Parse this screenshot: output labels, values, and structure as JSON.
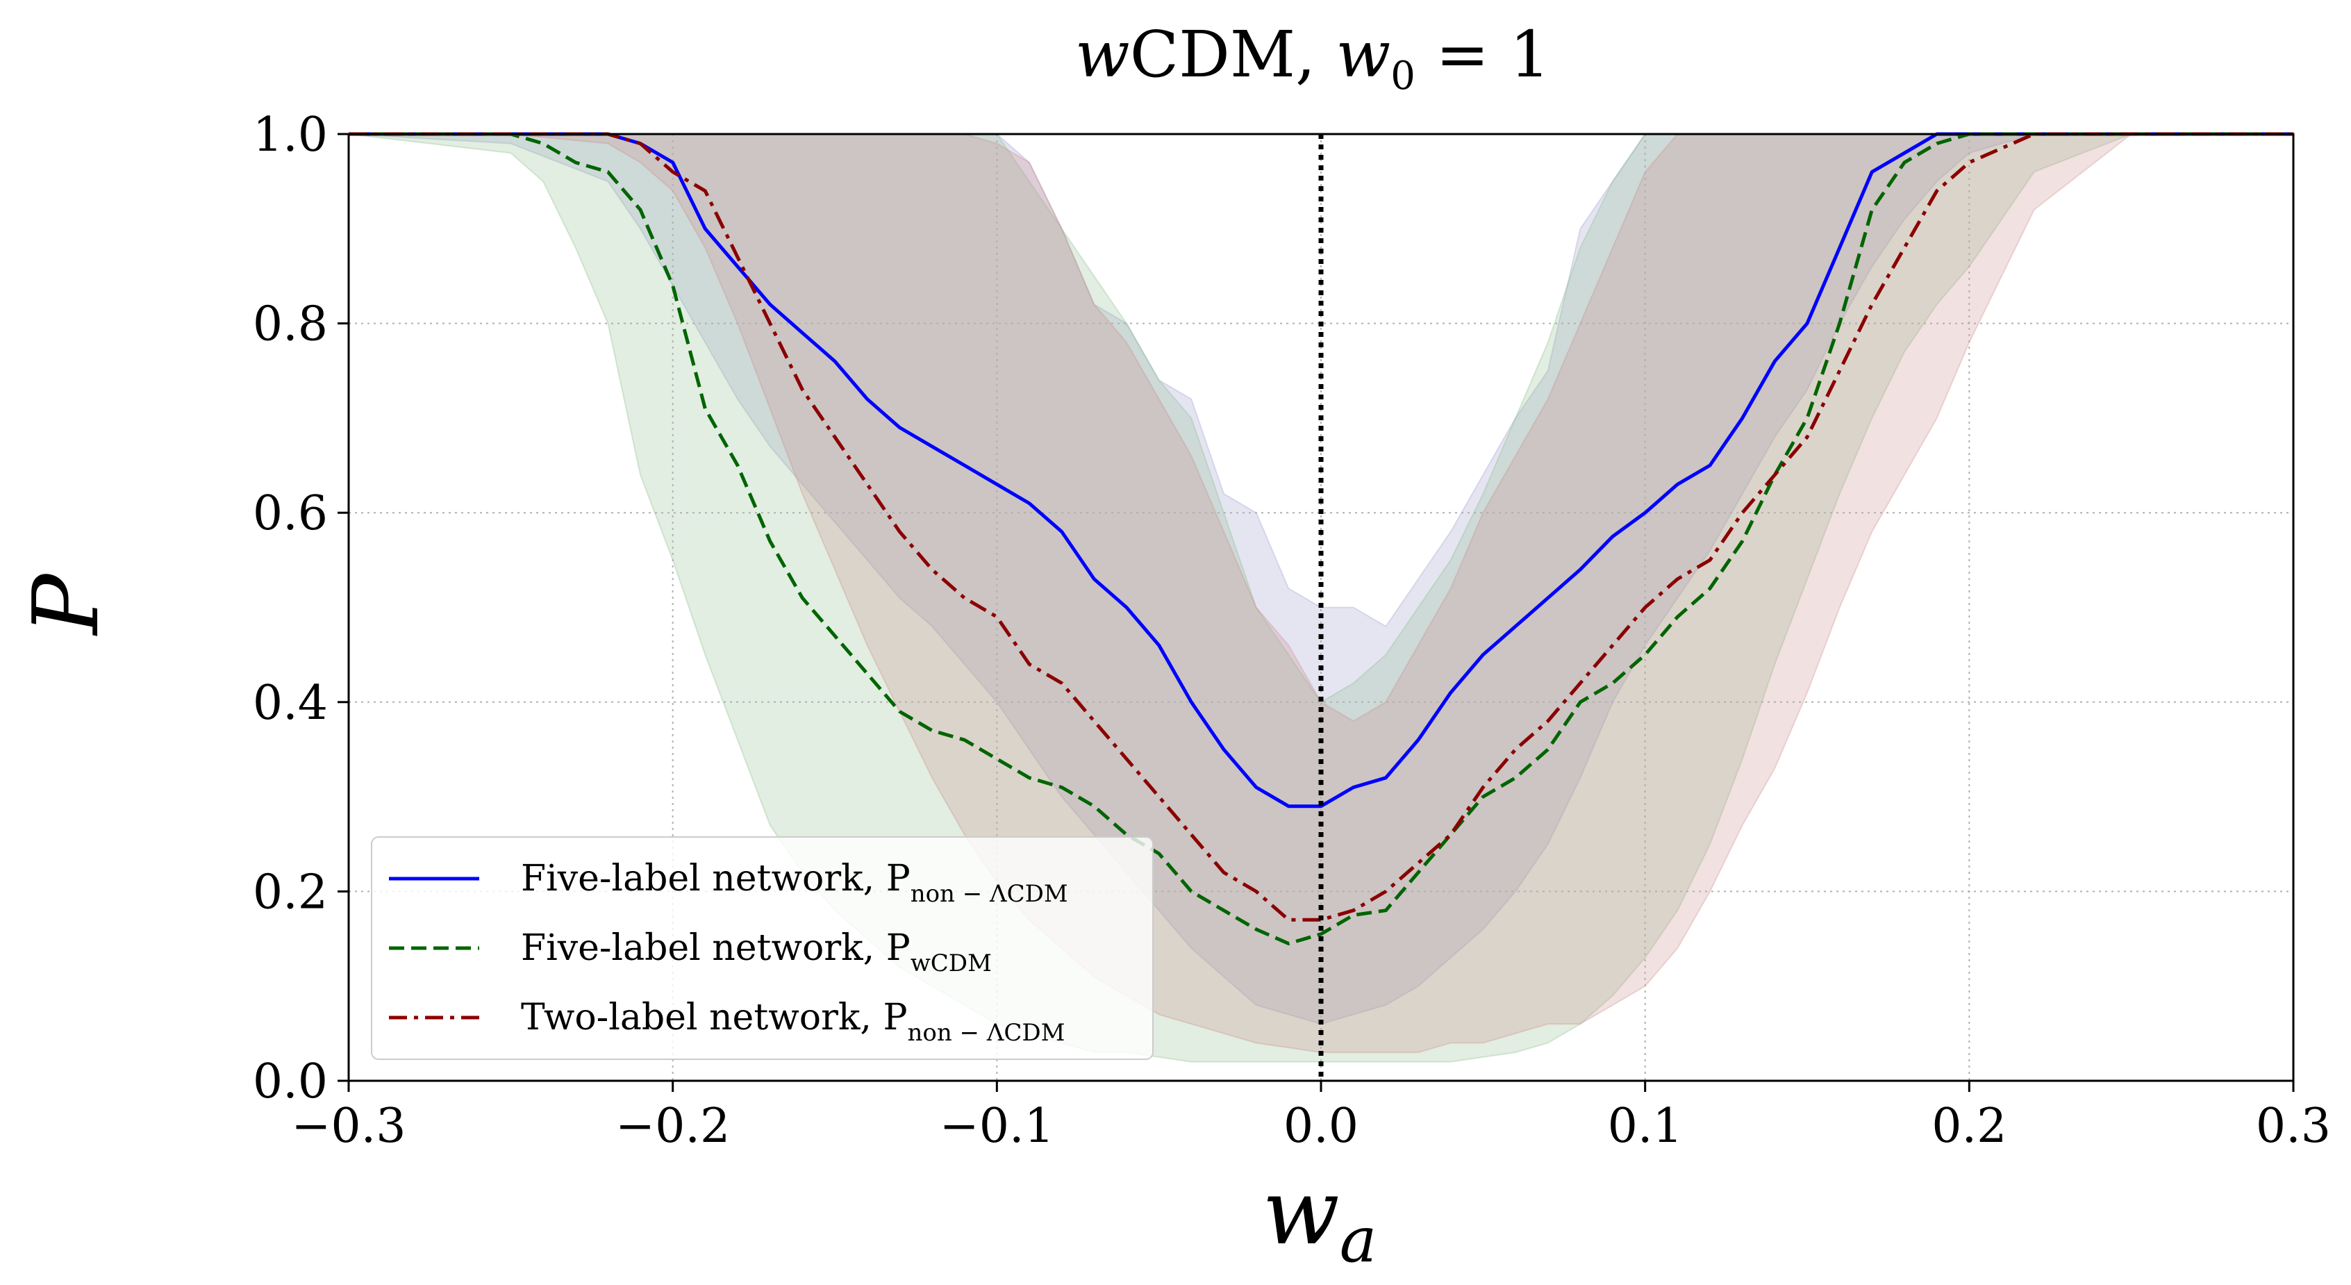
{
  "chart_data": {
    "type": "line",
    "title": "wCDM, w0 = 1",
    "xlabel": "wa",
    "ylabel": "P",
    "xlim": [
      -0.3,
      0.3
    ],
    "ylim": [
      0.0,
      1.0
    ],
    "x_ticks": [
      -0.3,
      -0.2,
      -0.1,
      0.0,
      0.1,
      0.2,
      0.3
    ],
    "x_tick_labels": [
      "−0.3",
      "−0.2",
      "−0.1",
      "0.0",
      "0.1",
      "0.2",
      "0.3"
    ],
    "y_ticks": [
      0.0,
      0.2,
      0.4,
      0.6,
      0.8,
      1.0
    ],
    "y_tick_labels": [
      "0.0",
      "0.2",
      "0.4",
      "0.6",
      "0.8",
      "1.0"
    ],
    "grid": true,
    "vertical_line": {
      "x": 0.0,
      "style": "dotted",
      "color": "#000000"
    },
    "legend_position": "lower-left",
    "series": [
      {
        "name": "Five-label network, P_non−ΛCDM",
        "legend_main": "Five-label network, P",
        "legend_sub": "non − ΛCDM",
        "color": "#0000ff",
        "linestyle": "solid",
        "band_fill": "#9999cc",
        "x": [
          -0.3,
          -0.25,
          -0.22,
          -0.21,
          -0.2,
          -0.19,
          -0.18,
          -0.17,
          -0.16,
          -0.15,
          -0.14,
          -0.13,
          -0.12,
          -0.11,
          -0.1,
          -0.09,
          -0.08,
          -0.07,
          -0.06,
          -0.05,
          -0.04,
          -0.03,
          -0.02,
          -0.01,
          0.0,
          0.01,
          0.02,
          0.03,
          0.04,
          0.05,
          0.06,
          0.07,
          0.08,
          0.09,
          0.1,
          0.11,
          0.12,
          0.13,
          0.14,
          0.15,
          0.16,
          0.17,
          0.18,
          0.19,
          0.2,
          0.22,
          0.25,
          0.3
        ],
        "y": [
          1.0,
          1.0,
          1.0,
          0.99,
          0.97,
          0.9,
          0.86,
          0.82,
          0.79,
          0.76,
          0.72,
          0.69,
          0.67,
          0.65,
          0.63,
          0.61,
          0.58,
          0.53,
          0.5,
          0.46,
          0.4,
          0.35,
          0.31,
          0.29,
          0.29,
          0.31,
          0.32,
          0.36,
          0.41,
          0.45,
          0.48,
          0.51,
          0.54,
          0.575,
          0.6,
          0.63,
          0.65,
          0.7,
          0.76,
          0.8,
          0.88,
          0.96,
          0.98,
          1.0,
          1.0,
          1.0,
          1.0,
          1.0
        ],
        "upper": [
          1.0,
          1.0,
          1.0,
          1.0,
          1.0,
          1.0,
          1.0,
          1.0,
          1.0,
          1.0,
          1.0,
          1.0,
          1.0,
          1.0,
          1.0,
          0.97,
          0.9,
          0.82,
          0.8,
          0.74,
          0.72,
          0.62,
          0.6,
          0.52,
          0.5,
          0.5,
          0.48,
          0.53,
          0.58,
          0.64,
          0.7,
          0.75,
          0.9,
          0.95,
          1.0,
          1.0,
          1.0,
          1.0,
          1.0,
          1.0,
          1.0,
          1.0,
          1.0,
          1.0,
          1.0,
          1.0,
          1.0,
          1.0
        ],
        "lower": [
          1.0,
          0.99,
          0.95,
          0.9,
          0.84,
          0.78,
          0.72,
          0.67,
          0.63,
          0.59,
          0.55,
          0.51,
          0.48,
          0.44,
          0.4,
          0.35,
          0.3,
          0.26,
          0.22,
          0.18,
          0.14,
          0.11,
          0.08,
          0.07,
          0.06,
          0.07,
          0.08,
          0.1,
          0.13,
          0.16,
          0.2,
          0.25,
          0.32,
          0.4,
          0.46,
          0.51,
          0.56,
          0.62,
          0.68,
          0.73,
          0.8,
          0.86,
          0.91,
          0.95,
          0.98,
          1.0,
          1.0,
          1.0
        ]
      },
      {
        "name": "Five-label network, P_wCDM",
        "legend_main": "Five-label network, P",
        "legend_sub": "wCDM",
        "color": "#006400",
        "linestyle": "dashed",
        "band_fill": "#88bb88",
        "x": [
          -0.3,
          -0.25,
          -0.24,
          -0.23,
          -0.22,
          -0.21,
          -0.2,
          -0.19,
          -0.18,
          -0.17,
          -0.16,
          -0.15,
          -0.14,
          -0.13,
          -0.12,
          -0.11,
          -0.1,
          -0.09,
          -0.08,
          -0.07,
          -0.06,
          -0.05,
          -0.04,
          -0.03,
          -0.02,
          -0.01,
          0.0,
          0.01,
          0.02,
          0.03,
          0.04,
          0.05,
          0.06,
          0.07,
          0.08,
          0.09,
          0.1,
          0.11,
          0.12,
          0.13,
          0.14,
          0.15,
          0.16,
          0.17,
          0.18,
          0.19,
          0.2,
          0.22,
          0.25,
          0.3
        ],
        "y": [
          1.0,
          1.0,
          0.99,
          0.97,
          0.96,
          0.92,
          0.84,
          0.71,
          0.65,
          0.57,
          0.51,
          0.47,
          0.43,
          0.39,
          0.37,
          0.36,
          0.34,
          0.32,
          0.31,
          0.29,
          0.26,
          0.24,
          0.2,
          0.18,
          0.16,
          0.145,
          0.155,
          0.175,
          0.18,
          0.22,
          0.26,
          0.3,
          0.32,
          0.35,
          0.4,
          0.42,
          0.45,
          0.49,
          0.52,
          0.57,
          0.64,
          0.7,
          0.8,
          0.92,
          0.97,
          0.99,
          1.0,
          1.0,
          1.0,
          1.0
        ],
        "upper": [
          1.0,
          1.0,
          1.0,
          1.0,
          1.0,
          1.0,
          1.0,
          1.0,
          1.0,
          1.0,
          1.0,
          1.0,
          1.0,
          1.0,
          1.0,
          1.0,
          1.0,
          0.95,
          0.9,
          0.85,
          0.8,
          0.74,
          0.7,
          0.6,
          0.5,
          0.45,
          0.4,
          0.42,
          0.45,
          0.5,
          0.55,
          0.62,
          0.7,
          0.78,
          0.88,
          0.95,
          1.0,
          1.0,
          1.0,
          1.0,
          1.0,
          1.0,
          1.0,
          1.0,
          1.0,
          1.0,
          1.0,
          1.0,
          1.0,
          1.0
        ],
        "lower": [
          1.0,
          0.98,
          0.95,
          0.88,
          0.8,
          0.64,
          0.55,
          0.45,
          0.36,
          0.27,
          0.22,
          0.18,
          0.15,
          0.12,
          0.1,
          0.08,
          0.06,
          0.05,
          0.04,
          0.03,
          0.03,
          0.025,
          0.02,
          0.02,
          0.02,
          0.02,
          0.02,
          0.02,
          0.02,
          0.02,
          0.02,
          0.025,
          0.03,
          0.04,
          0.06,
          0.09,
          0.13,
          0.18,
          0.25,
          0.34,
          0.44,
          0.53,
          0.62,
          0.7,
          0.77,
          0.82,
          0.86,
          0.96,
          1.0,
          1.0
        ]
      },
      {
        "name": "Two-label network, P_non−ΛCDM",
        "legend_main": "Two-label network, P",
        "legend_sub": "non − ΛCDM",
        "color": "#8b0000",
        "linestyle": "dashdot",
        "band_fill": "#cc8888",
        "x": [
          -0.3,
          -0.25,
          -0.22,
          -0.21,
          -0.2,
          -0.19,
          -0.18,
          -0.17,
          -0.16,
          -0.15,
          -0.14,
          -0.13,
          -0.12,
          -0.11,
          -0.1,
          -0.09,
          -0.08,
          -0.07,
          -0.06,
          -0.05,
          -0.04,
          -0.03,
          -0.02,
          -0.01,
          0.0,
          0.01,
          0.02,
          0.03,
          0.04,
          0.05,
          0.06,
          0.07,
          0.08,
          0.09,
          0.1,
          0.11,
          0.12,
          0.13,
          0.14,
          0.15,
          0.16,
          0.17,
          0.18,
          0.19,
          0.2,
          0.22,
          0.25,
          0.3
        ],
        "y": [
          1.0,
          1.0,
          1.0,
          0.99,
          0.96,
          0.94,
          0.87,
          0.8,
          0.73,
          0.68,
          0.63,
          0.58,
          0.54,
          0.51,
          0.49,
          0.44,
          0.42,
          0.38,
          0.34,
          0.3,
          0.26,
          0.22,
          0.2,
          0.17,
          0.17,
          0.18,
          0.2,
          0.23,
          0.26,
          0.31,
          0.35,
          0.38,
          0.42,
          0.46,
          0.5,
          0.53,
          0.55,
          0.6,
          0.64,
          0.68,
          0.75,
          0.82,
          0.88,
          0.94,
          0.97,
          1.0,
          1.0,
          1.0
        ],
        "upper": [
          1.0,
          1.0,
          1.0,
          1.0,
          1.0,
          1.0,
          1.0,
          1.0,
          1.0,
          1.0,
          1.0,
          1.0,
          1.0,
          1.0,
          0.99,
          0.97,
          0.9,
          0.82,
          0.78,
          0.72,
          0.66,
          0.58,
          0.5,
          0.46,
          0.4,
          0.38,
          0.4,
          0.46,
          0.52,
          0.6,
          0.66,
          0.72,
          0.8,
          0.88,
          0.96,
          1.0,
          1.0,
          1.0,
          1.0,
          1.0,
          1.0,
          1.0,
          1.0,
          1.0,
          1.0,
          1.0,
          1.0,
          1.0
        ],
        "lower": [
          1.0,
          1.0,
          0.99,
          0.97,
          0.94,
          0.88,
          0.8,
          0.71,
          0.62,
          0.54,
          0.46,
          0.39,
          0.32,
          0.26,
          0.21,
          0.17,
          0.14,
          0.11,
          0.09,
          0.07,
          0.06,
          0.05,
          0.04,
          0.035,
          0.03,
          0.03,
          0.03,
          0.03,
          0.04,
          0.04,
          0.05,
          0.06,
          0.06,
          0.08,
          0.1,
          0.14,
          0.2,
          0.27,
          0.33,
          0.41,
          0.5,
          0.58,
          0.64,
          0.7,
          0.78,
          0.92,
          1.0,
          1.0
        ]
      }
    ]
  }
}
